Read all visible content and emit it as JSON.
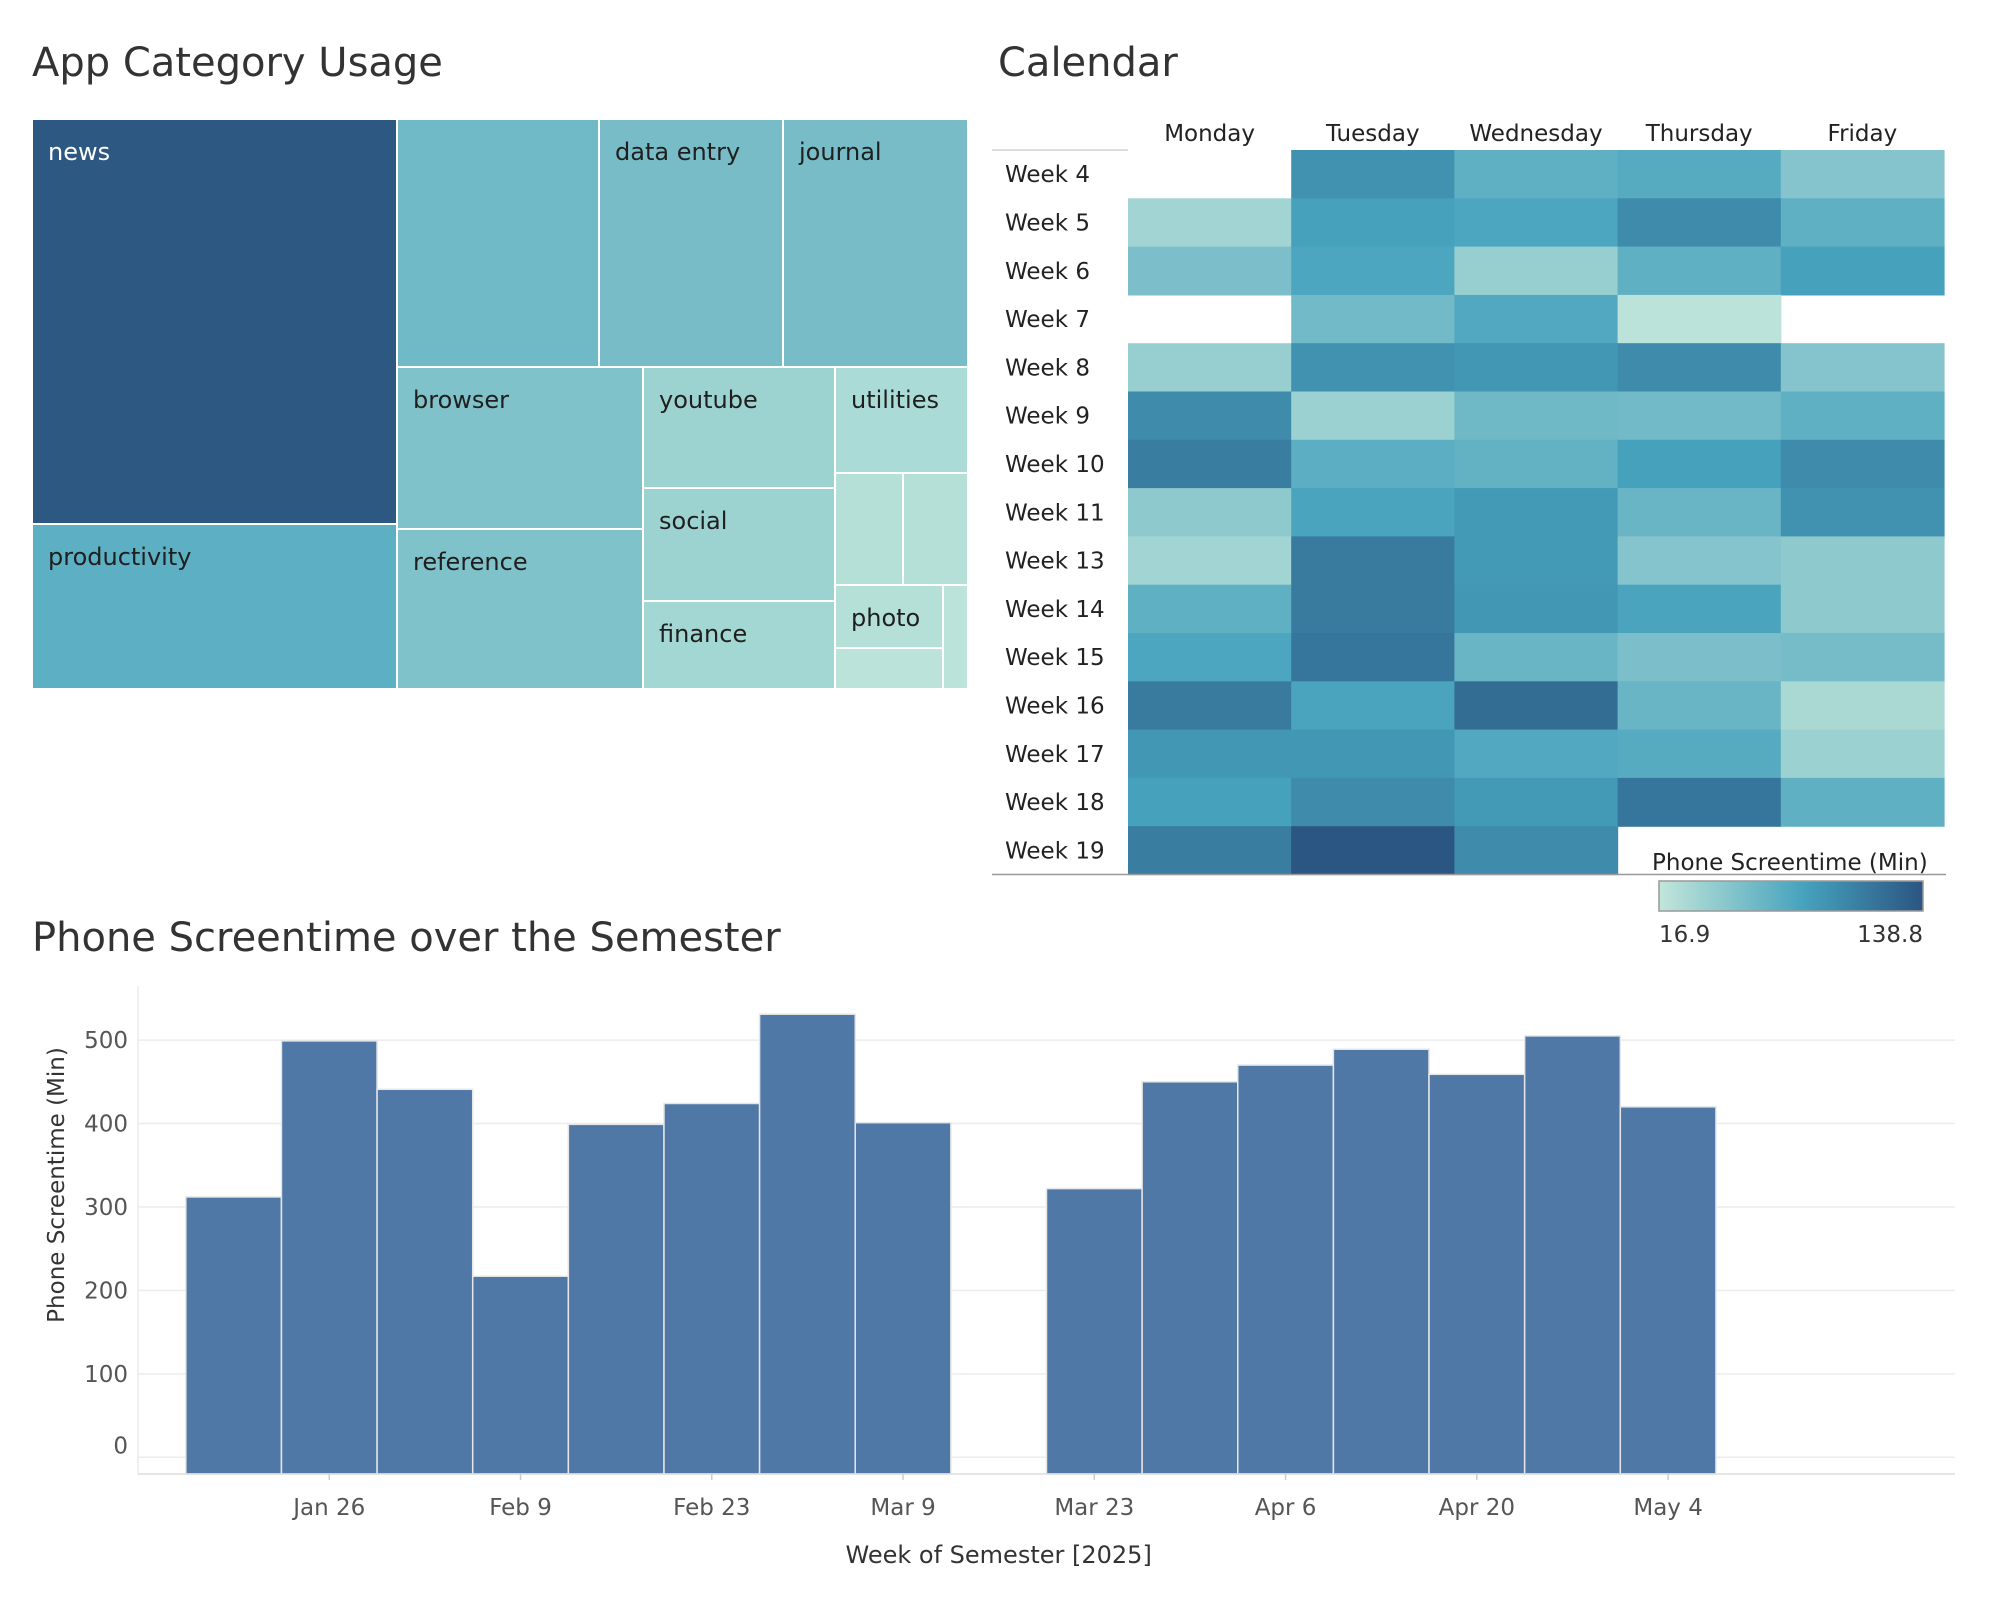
{
  "colors": {
    "scale_low": "#c2e6da",
    "scale_mid": "#46a2bd",
    "scale_high": "#2b5582",
    "bar_fill": "#4f78a6",
    "grid": "#ececec"
  },
  "treemap": {
    "title": "App Category Usage",
    "chart_data": {
      "type": "treemap",
      "title": "App Category Usage",
      "tiles": [
        {
          "label": "news",
          "value": 100,
          "color": "#2d5882"
        },
        {
          "label": "productivity",
          "value": 40,
          "color": "#5db0c3"
        },
        {
          "label": "",
          "value": 38,
          "color": "#70b9c6"
        },
        {
          "label": "data entry",
          "value": 34,
          "color": "#78bcc7"
        },
        {
          "label": "journal",
          "value": 34,
          "color": "#78bcc7"
        },
        {
          "label": "browser",
          "value": 28,
          "color": "#80c2ca"
        },
        {
          "label": "reference",
          "value": 25,
          "color": "#80c2ca"
        },
        {
          "label": "youtube",
          "value": 15,
          "color": "#9cd3d1"
        },
        {
          "label": "social",
          "value": 14,
          "color": "#9cd3d1"
        },
        {
          "label": "finance",
          "value": 12,
          "color": "#a3d7d3"
        },
        {
          "label": "utilities",
          "value": 8,
          "color": "#abdbd6"
        },
        {
          "label": "",
          "value": 5,
          "color": "#b4e0d8"
        },
        {
          "label": "",
          "value": 5,
          "color": "#b4e0d8"
        },
        {
          "label": "photo",
          "value": 4,
          "color": "#b4e0d8"
        },
        {
          "label": "",
          "value": 2,
          "color": "#bbe3da"
        },
        {
          "label": "",
          "value": 1,
          "color": "#bbe3da"
        }
      ]
    }
  },
  "calendar": {
    "title": "Calendar",
    "legend_title": "Phone Screentime  (Min)",
    "legend_min": "16.9",
    "legend_max": "138.8",
    "chart_data": {
      "type": "heatmap",
      "title": "Calendar",
      "columns": [
        "Monday",
        "Tuesday",
        "Wednesday",
        "Thursday",
        "Friday"
      ],
      "rows": [
        "Week 4",
        "Week 5",
        "Week 6",
        "Week 7",
        "Week 8",
        "Week 9",
        "Week 10",
        "Week 11",
        "Week 13",
        "Week 14",
        "Week 15",
        "Week 16",
        "Week 17",
        "Week 18",
        "Week 19"
      ],
      "value_range": [
        16.9,
        138.8
      ],
      "values": [
        [
          null,
          95,
          70,
          75,
          50
        ],
        [
          35,
          85,
          80,
          100,
          70
        ],
        [
          55,
          80,
          40,
          70,
          85
        ],
        [
          null,
          60,
          78,
          20,
          null
        ],
        [
          40,
          95,
          92,
          100,
          50
        ],
        [
          100,
          38,
          62,
          60,
          70
        ],
        [
          110,
          72,
          68,
          85,
          100
        ],
        [
          45,
          82,
          90,
          65,
          95
        ],
        [
          35,
          112,
          90,
          50,
          45
        ],
        [
          70,
          112,
          92,
          82,
          45
        ],
        [
          80,
          115,
          65,
          55,
          58
        ],
        [
          112,
          82,
          122,
          65,
          30
        ],
        [
          92,
          92,
          78,
          75,
          38
        ],
        [
          85,
          100,
          90,
          115,
          70
        ],
        [
          110,
          138.8,
          100,
          null,
          null
        ]
      ],
      "legend_title": "Phone Screentime  (Min)"
    }
  },
  "barchart": {
    "title": "Phone Screentime over the Semester",
    "ylabel": "Phone Screentime (Min)",
    "xlabel": "Week of Semester [2025]",
    "chart_data": {
      "type": "bar",
      "title": "Phone Screentime over the Semester",
      "xlabel": "Week of Semester [2025]",
      "ylabel": "Phone Screentime (Min)",
      "x": [
        "2025-01-19",
        "2025-01-26",
        "2025-02-02",
        "2025-02-09",
        "2025-02-16",
        "2025-02-23",
        "2025-03-02",
        "2025-03-09",
        "2025-03-23",
        "2025-03-30",
        "2025-04-06",
        "2025-04-13",
        "2025-04-20",
        "2025-04-27",
        "2025-05-04"
      ],
      "values": [
        312,
        499,
        441,
        217,
        399,
        424,
        531,
        401,
        322,
        450,
        470,
        489,
        459,
        505,
        420
      ],
      "ylim": [
        -20,
        560
      ],
      "yticks": [
        0,
        100,
        200,
        300,
        400,
        500
      ],
      "xticks": [
        {
          "label": "Jan 26",
          "date": "2025-01-26"
        },
        {
          "label": "Feb 9",
          "date": "2025-02-09"
        },
        {
          "label": "Feb 23",
          "date": "2025-02-23"
        },
        {
          "label": "Mar 9",
          "date": "2025-03-09"
        },
        {
          "label": "Mar 23",
          "date": "2025-03-23"
        },
        {
          "label": "Apr 6",
          "date": "2025-04-06"
        },
        {
          "label": "Apr 20",
          "date": "2025-04-20"
        },
        {
          "label": "May 4",
          "date": "2025-05-04"
        }
      ],
      "grid": true
    }
  }
}
